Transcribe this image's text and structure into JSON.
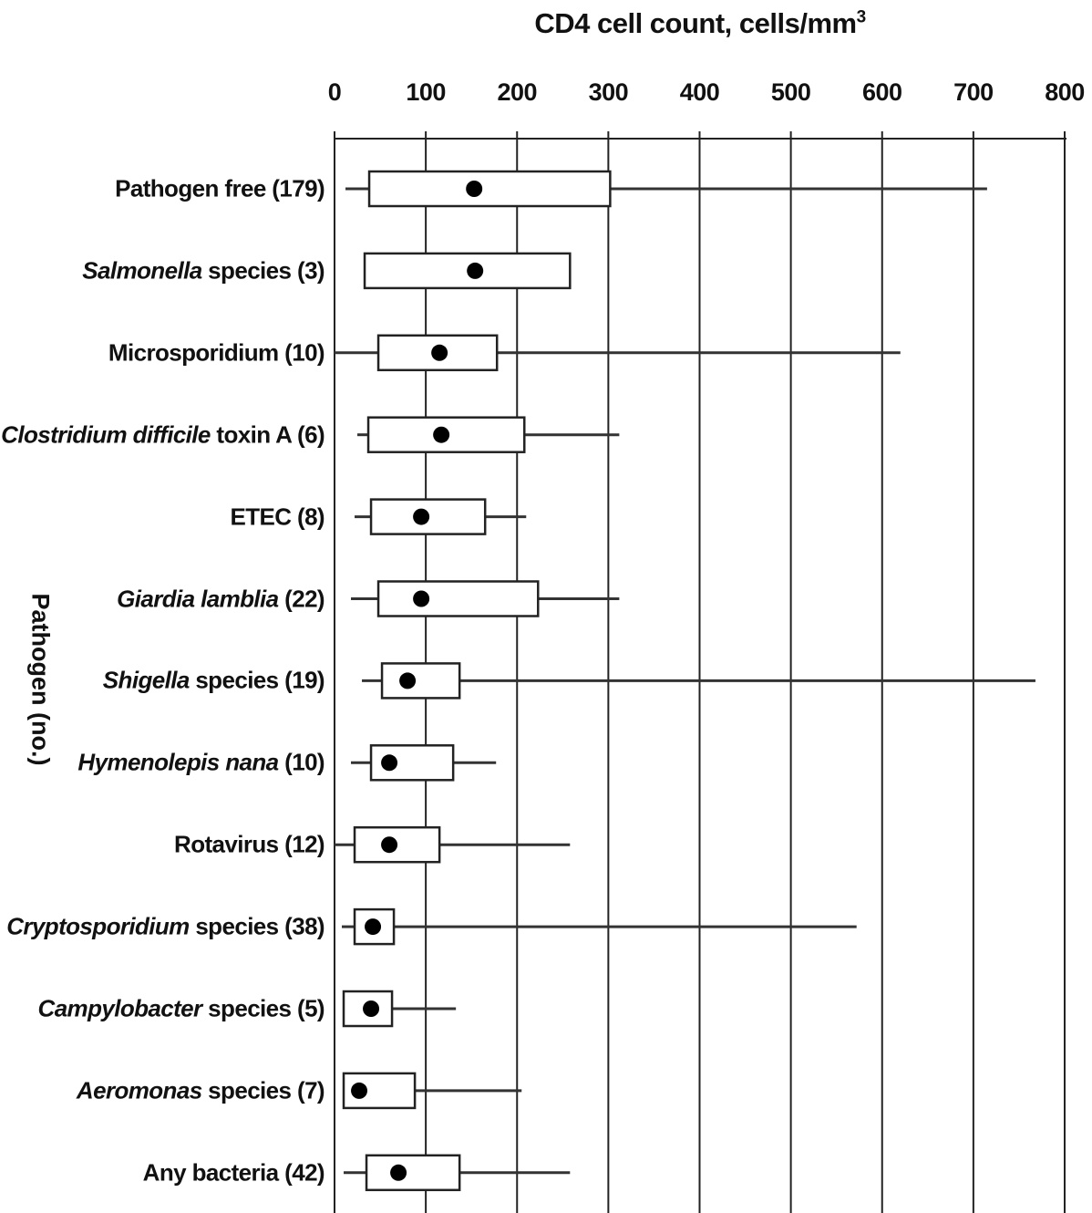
{
  "chart_data": {
    "type": "boxplot",
    "title": "",
    "xlabel": "CD4 cell count, cells/mm",
    "xlabel_superscript": "3",
    "ylabel": "Pathogen (no.)",
    "xlim": [
      0,
      800
    ],
    "xticks": [
      0,
      100,
      200,
      300,
      400,
      500,
      600,
      700,
      800
    ],
    "x_axis_position": "top",
    "grid": "vertical",
    "categories": [
      {
        "label_italic": "",
        "label_rest": "Pathogen free (179)",
        "whisker_low": 12,
        "q1": 38,
        "median": 153,
        "q3": 302,
        "whisker_high": 715
      },
      {
        "label_italic": "Salmonella",
        "label_rest": " species (3)",
        "whisker_low": null,
        "q1": 33,
        "median": 154,
        "q3": 258,
        "whisker_high": null
      },
      {
        "label_italic": "",
        "label_rest": "Microsporidium (10)",
        "whisker_low": 0,
        "q1": 48,
        "median": 115,
        "q3": 178,
        "whisker_high": 620
      },
      {
        "label_italic": "Clostridium difficile",
        "label_rest": " toxin A (6)",
        "whisker_low": 25,
        "q1": 37,
        "median": 117,
        "q3": 208,
        "whisker_high": 312
      },
      {
        "label_italic": "",
        "label_rest": "ETEC (8)",
        "whisker_low": 22,
        "q1": 40,
        "median": 95,
        "q3": 165,
        "whisker_high": 210
      },
      {
        "label_italic": "Giardia lamblia",
        "label_rest": " (22)",
        "whisker_low": 18,
        "q1": 48,
        "median": 95,
        "q3": 223,
        "whisker_high": 312
      },
      {
        "label_italic": "Shigella",
        "label_rest": " species (19)",
        "whisker_low": 30,
        "q1": 52,
        "median": 80,
        "q3": 137,
        "whisker_high": 768
      },
      {
        "label_italic": "Hymenolepis nana",
        "label_rest": " (10)",
        "whisker_low": 18,
        "q1": 40,
        "median": 60,
        "q3": 130,
        "whisker_high": 177
      },
      {
        "label_italic": "",
        "label_rest": "Rotavirus (12)",
        "whisker_low": 0,
        "q1": 22,
        "median": 60,
        "q3": 115,
        "whisker_high": 258
      },
      {
        "label_italic": "Cryptosporidium",
        "label_rest": " species (38)",
        "whisker_low": 8,
        "q1": 22,
        "median": 42,
        "q3": 65,
        "whisker_high": 572
      },
      {
        "label_italic": "Campylobacter",
        "label_rest": " species (5)",
        "whisker_low": null,
        "q1": 10,
        "median": 40,
        "q3": 63,
        "whisker_high": 133
      },
      {
        "label_italic": "Aeromonas",
        "label_rest": " species (7)",
        "whisker_low": null,
        "q1": 10,
        "median": 27,
        "q3": 88,
        "whisker_high": 205
      },
      {
        "label_italic": "",
        "label_rest": "Any bacteria (42)",
        "whisker_low": 10,
        "q1": 35,
        "median": 70,
        "q3": 137,
        "whisker_high": 258
      }
    ]
  }
}
